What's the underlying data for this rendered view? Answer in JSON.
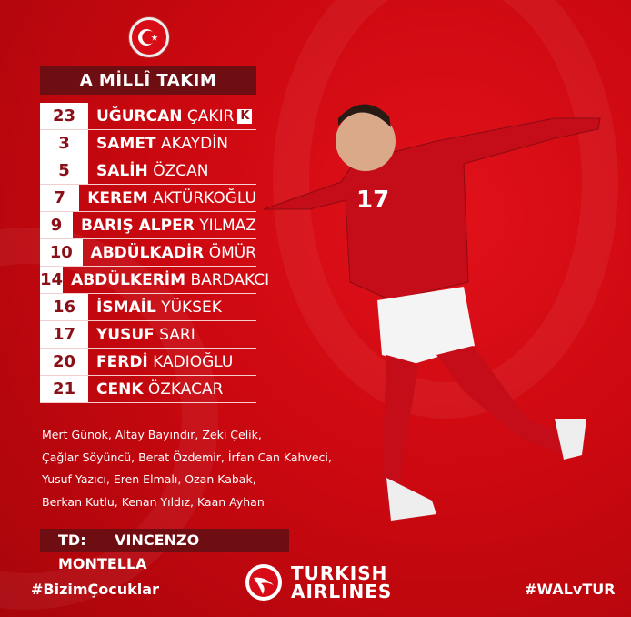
{
  "header": {
    "title": "A MİLLÎ TAKIM"
  },
  "players": [
    {
      "number": "23",
      "first": "UĞURCAN",
      "last": "ÇAKIR",
      "captain": "K"
    },
    {
      "number": "3",
      "first": "SAMET",
      "last": "AKAYDİN"
    },
    {
      "number": "5",
      "first": "SALİH",
      "last": "ÖZCAN"
    },
    {
      "number": "7",
      "first": "KEREM",
      "last": "AKTÜRKOĞLU"
    },
    {
      "number": "9",
      "first": "BARIŞ ALPER",
      "last": "YILMAZ"
    },
    {
      "number": "10",
      "first": "ABDÜLKADİR",
      "last": "ÖMÜR"
    },
    {
      "number": "14",
      "first": "ABDÜLKERİM",
      "last": "BARDAKCI"
    },
    {
      "number": "16",
      "first": "İSMAİL",
      "last": "YÜKSEK"
    },
    {
      "number": "17",
      "first": "YUSUF",
      "last": "SARI"
    },
    {
      "number": "20",
      "first": "FERDİ",
      "last": "KADIOĞLU"
    },
    {
      "number": "21",
      "first": "CENK",
      "last": "ÖZKACAR"
    }
  ],
  "substitutes": [
    "Mert Günok, Altay Bayındır, Zeki Çelik,",
    "Çağlar Söyüncü, Berat Özdemir, İrfan Can Kahveci,",
    "Yusuf Yazıcı, Eren Elmalı, Ozan Kabak,",
    "Berkan Kutlu, Kenan Yıldız, Kaan Ayhan"
  ],
  "coach": {
    "label": "TD:",
    "name": "VINCENZO MONTELLA"
  },
  "footer": {
    "hashtag_left": "#BizimÇocuklar",
    "hashtag_right": "#WALvTUR",
    "sponsor_line1": "TURKISH",
    "sponsor_line2": "AIRLINES"
  },
  "player_photo": {
    "jersey_number": "17"
  },
  "colors": {
    "background": "#cc0810",
    "dark_bar": "#6e0d12",
    "number_text": "#8a0f16"
  }
}
